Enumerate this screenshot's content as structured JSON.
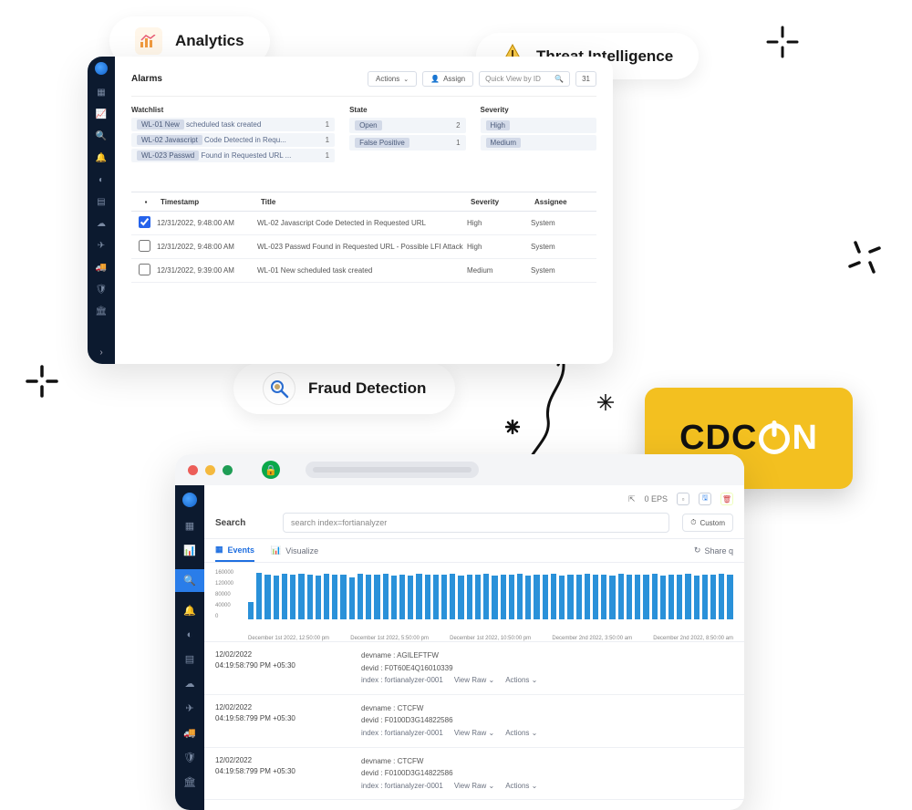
{
  "pills": {
    "analytics": "Analytics",
    "threat": "Threat Intelligence",
    "fraud": "Fraud Detection"
  },
  "cdcon": {
    "prefix": "CDC",
    "suffix": "N"
  },
  "panel1": {
    "title": "Alarms",
    "actions_btn": "Actions",
    "assign_btn": "Assign",
    "search_placeholder": "Quick View by ID",
    "count": "31",
    "filters": {
      "watchlist": {
        "header": "Watchlist",
        "rows": [
          {
            "tag": "WL-01 New",
            "rest": "scheduled task created",
            "count": "1"
          },
          {
            "tag": "WL-02 Javascript",
            "rest": "Code Detected in Requ...",
            "count": "1"
          },
          {
            "tag": "WL-023 Passwd",
            "rest": "Found in Requested URL ...",
            "count": "1"
          }
        ]
      },
      "state": {
        "header": "State",
        "rows": [
          {
            "tag": "Open",
            "count": "2"
          },
          {
            "tag": "False Positive",
            "count": "1"
          }
        ]
      },
      "severity": {
        "header": "Severity",
        "rows": [
          {
            "tag": "High",
            "count": ""
          },
          {
            "tag": "Medium",
            "count": ""
          }
        ]
      }
    },
    "table": {
      "cols": {
        "timestamp": "Timestamp",
        "title": "Title",
        "severity": "Severity",
        "assignee": "Assignee"
      },
      "rows": [
        {
          "checked": true,
          "ts": "12/31/2022, 9:48:00 AM",
          "title": "WL-02 Javascript Code Detected in Requested URL",
          "sev": "High",
          "asg": "System"
        },
        {
          "checked": false,
          "ts": "12/31/2022, 9:48:00 AM",
          "title": "WL-023 Passwd Found in Requested URL - Possible LFI Attack",
          "sev": "High",
          "asg": "System"
        },
        {
          "checked": false,
          "ts": "12/31/2022, 9:39:00 AM",
          "title": "WL-01 New scheduled task created",
          "sev": "Medium",
          "asg": "System"
        }
      ]
    }
  },
  "panel2": {
    "traffic_colors": [
      "#ec5e59",
      "#f4b93e",
      "#1f9d55"
    ],
    "eps": "0 EPS",
    "search_label": "Search",
    "search_placeholder": "search index=fortianalyzer",
    "custom_btn": "Custom",
    "tabs": {
      "events": "Events",
      "visualize": "Visualize",
      "share": "Share q"
    },
    "chart": {
      "ylabels": [
        "160000",
        "120000",
        "80000",
        "40000",
        "0"
      ],
      "xlabels": [
        "December 1st 2022, 12:50:00 pm",
        "December 1st 2022, 5:50:00 pm",
        "December 1st 2022, 10:50:00 pm",
        "December 2nd 2022, 3:50:00 am",
        "December 2nd 2022, 8:50:00 am"
      ],
      "bar_color": "#2a91d9",
      "bars": [
        36,
        98,
        95,
        92,
        96,
        94,
        96,
        95,
        93,
        96,
        94,
        95,
        88,
        96,
        94,
        95,
        96,
        93,
        95,
        92,
        96,
        94,
        95,
        94,
        96,
        93,
        95,
        94,
        96,
        93,
        95,
        94,
        96,
        93,
        95,
        94,
        96,
        93,
        95,
        94,
        96,
        94,
        95,
        93,
        96,
        94,
        95,
        94,
        96,
        93,
        95,
        94,
        96,
        93,
        95,
        94,
        96,
        94
      ]
    },
    "logs": [
      {
        "date": "12/02/2022",
        "time": "04:19:58:790 PM +05:30",
        "devname": "AGILEFTFW",
        "devid": "F0T60E4Q16010339",
        "index": "fortianalyzer-0001",
        "view": "View Raw",
        "actions": "Actions"
      },
      {
        "date": "12/02/2022",
        "time": "04:19:58:799 PM +05:30",
        "devname": "CTCFW",
        "devid": "F0100D3G14822586",
        "index": "fortianalyzer-0001",
        "view": "View Raw",
        "actions": "Actions"
      },
      {
        "date": "12/02/2022",
        "time": "04:19:58:799 PM +05:30",
        "devname": "CTCFW",
        "devid": "F0100D3G14822586",
        "index": "fortianalyzer-0001",
        "view": "View Raw",
        "actions": "Actions"
      }
    ]
  }
}
